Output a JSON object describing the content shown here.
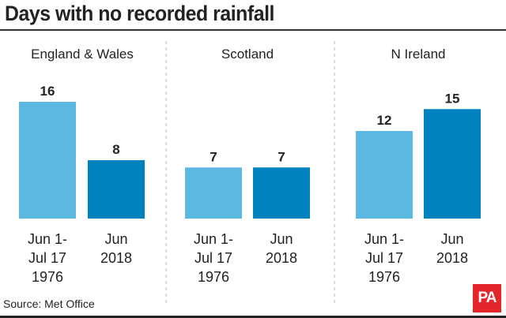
{
  "chart_data": {
    "type": "bar",
    "title": "Days with no recorded rainfall",
    "categories": [
      "Jun 1-\nJul 17\n1976",
      "Jun\n2018"
    ],
    "panels": [
      {
        "name": "England & Wales",
        "values": [
          16,
          8
        ]
      },
      {
        "name": "Scotland",
        "values": [
          7,
          7
        ]
      },
      {
        "name": "N Ireland",
        "values": [
          12,
          15
        ]
      }
    ],
    "colors": [
      "#5bb8e0",
      "#0082bf"
    ],
    "ylim": [
      0,
      16
    ],
    "grid": false,
    "data_labels": true
  },
  "source": "Source: Met Office",
  "logo": "PA"
}
